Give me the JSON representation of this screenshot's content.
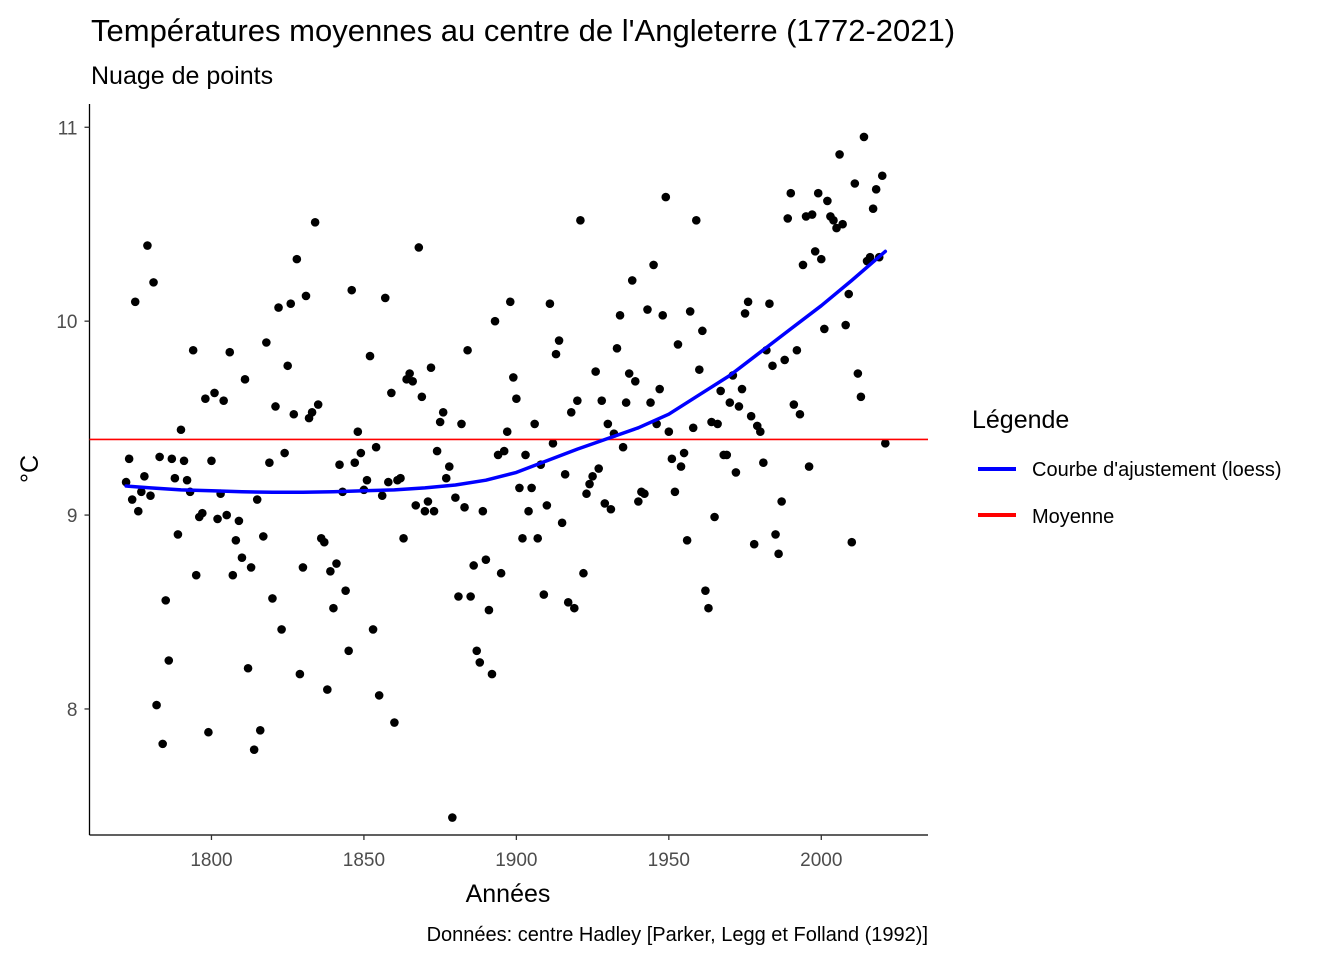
{
  "chart_data": {
    "type": "scatter",
    "title": "Températures moyennes au centre de l'Angleterre (1772-2021)",
    "subtitle": "Nuage de points",
    "xlabel": "Années",
    "ylabel": "°C",
    "caption": "Données: centre Hadley [Parker, Legg et Folland (1992)]",
    "xlim": [
      1760,
      2035
    ],
    "ylim": [
      7.35,
      11.12
    ],
    "x_ticks": [
      1800,
      1850,
      1900,
      1950,
      2000
    ],
    "y_ticks": [
      8,
      9,
      10,
      11
    ],
    "grid": false,
    "legend": {
      "title": "Légende",
      "position": "right",
      "entries": [
        {
          "label": "Courbe d'ajustement (loess)",
          "color": "#0000ff"
        },
        {
          "label": "Moyenne",
          "color": "#ff0000"
        }
      ]
    },
    "colors": {
      "points": "#000000",
      "loess": "#0000ff",
      "mean": "#ff0000"
    },
    "mean_value": 9.39,
    "points": [
      [
        1772,
        9.17
      ],
      [
        1773,
        9.29
      ],
      [
        1774,
        9.08
      ],
      [
        1775,
        10.1
      ],
      [
        1776,
        9.02
      ],
      [
        1777,
        9.12
      ],
      [
        1778,
        9.2
      ],
      [
        1779,
        10.39
      ],
      [
        1780,
        9.1
      ],
      [
        1781,
        10.2
      ],
      [
        1782,
        8.02
      ],
      [
        1783,
        9.3
      ],
      [
        1784,
        7.82
      ],
      [
        1785,
        8.56
      ],
      [
        1786,
        8.25
      ],
      [
        1787,
        9.29
      ],
      [
        1788,
        9.19
      ],
      [
        1789,
        8.9
      ],
      [
        1790,
        9.44
      ],
      [
        1791,
        9.28
      ],
      [
        1792,
        9.18
      ],
      [
        1793,
        9.12
      ],
      [
        1794,
        9.85
      ],
      [
        1795,
        8.69
      ],
      [
        1796,
        8.99
      ],
      [
        1797,
        9.01
      ],
      [
        1798,
        9.6
      ],
      [
        1799,
        7.88
      ],
      [
        1800,
        9.28
      ],
      [
        1801,
        9.63
      ],
      [
        1802,
        8.98
      ],
      [
        1803,
        9.11
      ],
      [
        1804,
        9.59
      ],
      [
        1805,
        9.0
      ],
      [
        1806,
        9.84
      ],
      [
        1807,
        8.69
      ],
      [
        1808,
        8.87
      ],
      [
        1809,
        8.97
      ],
      [
        1810,
        8.78
      ],
      [
        1811,
        9.7
      ],
      [
        1812,
        8.21
      ],
      [
        1813,
        8.73
      ],
      [
        1814,
        7.79
      ],
      [
        1815,
        9.08
      ],
      [
        1816,
        7.89
      ],
      [
        1817,
        8.89
      ],
      [
        1818,
        9.89
      ],
      [
        1819,
        9.27
      ],
      [
        1820,
        8.57
      ],
      [
        1821,
        9.56
      ],
      [
        1822,
        10.07
      ],
      [
        1823,
        8.41
      ],
      [
        1824,
        9.32
      ],
      [
        1825,
        9.77
      ],
      [
        1826,
        10.09
      ],
      [
        1827,
        9.52
      ],
      [
        1828,
        10.32
      ],
      [
        1829,
        8.18
      ],
      [
        1830,
        8.73
      ],
      [
        1831,
        10.13
      ],
      [
        1832,
        9.5
      ],
      [
        1833,
        9.53
      ],
      [
        1834,
        10.51
      ],
      [
        1835,
        9.57
      ],
      [
        1836,
        8.88
      ],
      [
        1837,
        8.86
      ],
      [
        1838,
        8.1
      ],
      [
        1839,
        8.71
      ],
      [
        1840,
        8.52
      ],
      [
        1841,
        8.75
      ],
      [
        1842,
        9.26
      ],
      [
        1843,
        9.12
      ],
      [
        1844,
        8.61
      ],
      [
        1845,
        8.3
      ],
      [
        1846,
        10.16
      ],
      [
        1847,
        9.27
      ],
      [
        1848,
        9.43
      ],
      [
        1849,
        9.32
      ],
      [
        1850,
        9.13
      ],
      [
        1851,
        9.18
      ],
      [
        1852,
        9.82
      ],
      [
        1853,
        8.41
      ],
      [
        1854,
        9.35
      ],
      [
        1855,
        8.07
      ],
      [
        1856,
        9.1
      ],
      [
        1857,
        10.12
      ],
      [
        1858,
        9.17
      ],
      [
        1859,
        9.63
      ],
      [
        1860,
        7.93
      ],
      [
        1861,
        9.18
      ],
      [
        1862,
        9.19
      ],
      [
        1863,
        8.88
      ],
      [
        1864,
        9.7
      ],
      [
        1865,
        9.73
      ],
      [
        1866,
        9.69
      ],
      [
        1867,
        9.05
      ],
      [
        1868,
        10.38
      ],
      [
        1869,
        9.61
      ],
      [
        1870,
        9.02
      ],
      [
        1871,
        9.07
      ],
      [
        1872,
        9.76
      ],
      [
        1873,
        9.02
      ],
      [
        1874,
        9.33
      ],
      [
        1875,
        9.48
      ],
      [
        1876,
        9.53
      ],
      [
        1877,
        9.19
      ],
      [
        1878,
        9.25
      ],
      [
        1879,
        7.44
      ],
      [
        1880,
        9.09
      ],
      [
        1881,
        8.58
      ],
      [
        1882,
        9.47
      ],
      [
        1883,
        9.04
      ],
      [
        1884,
        9.85
      ],
      [
        1885,
        8.58
      ],
      [
        1886,
        8.74
      ],
      [
        1887,
        8.3
      ],
      [
        1888,
        8.24
      ],
      [
        1889,
        9.02
      ],
      [
        1890,
        8.77
      ],
      [
        1891,
        8.51
      ],
      [
        1892,
        8.18
      ],
      [
        1893,
        10.0
      ],
      [
        1894,
        9.31
      ],
      [
        1895,
        8.7
      ],
      [
        1896,
        9.33
      ],
      [
        1897,
        9.43
      ],
      [
        1898,
        10.1
      ],
      [
        1899,
        9.71
      ],
      [
        1900,
        9.6
      ],
      [
        1901,
        9.14
      ],
      [
        1902,
        8.88
      ],
      [
        1903,
        9.31
      ],
      [
        1904,
        9.02
      ],
      [
        1905,
        9.14
      ],
      [
        1906,
        9.47
      ],
      [
        1907,
        8.88
      ],
      [
        1908,
        9.26
      ],
      [
        1909,
        8.59
      ],
      [
        1910,
        9.05
      ],
      [
        1911,
        10.09
      ],
      [
        1912,
        9.37
      ],
      [
        1913,
        9.83
      ],
      [
        1914,
        9.9
      ],
      [
        1915,
        8.96
      ],
      [
        1916,
        9.21
      ],
      [
        1917,
        8.55
      ],
      [
        1918,
        9.53
      ],
      [
        1919,
        8.52
      ],
      [
        1920,
        9.59
      ],
      [
        1921,
        10.52
      ],
      [
        1922,
        8.7
      ],
      [
        1923,
        9.11
      ],
      [
        1924,
        9.16
      ],
      [
        1925,
        9.2
      ],
      [
        1926,
        9.74
      ],
      [
        1927,
        9.24
      ],
      [
        1928,
        9.59
      ],
      [
        1929,
        9.06
      ],
      [
        1930,
        9.47
      ],
      [
        1931,
        9.03
      ],
      [
        1932,
        9.42
      ],
      [
        1933,
        9.86
      ],
      [
        1934,
        10.03
      ],
      [
        1935,
        9.35
      ],
      [
        1936,
        9.58
      ],
      [
        1937,
        9.73
      ],
      [
        1938,
        10.21
      ],
      [
        1939,
        9.69
      ],
      [
        1940,
        9.07
      ],
      [
        1941,
        9.12
      ],
      [
        1942,
        9.11
      ],
      [
        1943,
        10.06
      ],
      [
        1944,
        9.58
      ],
      [
        1945,
        10.29
      ],
      [
        1946,
        9.47
      ],
      [
        1947,
        9.65
      ],
      [
        1948,
        10.03
      ],
      [
        1949,
        10.64
      ],
      [
        1950,
        9.43
      ],
      [
        1951,
        9.29
      ],
      [
        1952,
        9.12
      ],
      [
        1953,
        9.88
      ],
      [
        1954,
        9.25
      ],
      [
        1955,
        9.32
      ],
      [
        1956,
        8.87
      ],
      [
        1957,
        10.05
      ],
      [
        1958,
        9.45
      ],
      [
        1959,
        10.52
      ],
      [
        1960,
        9.75
      ],
      [
        1961,
        9.95
      ],
      [
        1962,
        8.61
      ],
      [
        1963,
        8.52
      ],
      [
        1964,
        9.48
      ],
      [
        1965,
        8.99
      ],
      [
        1966,
        9.47
      ],
      [
        1967,
        9.64
      ],
      [
        1968,
        9.31
      ],
      [
        1969,
        9.31
      ],
      [
        1970,
        9.58
      ],
      [
        1971,
        9.72
      ],
      [
        1972,
        9.22
      ],
      [
        1973,
        9.56
      ],
      [
        1974,
        9.65
      ],
      [
        1975,
        10.04
      ],
      [
        1976,
        10.1
      ],
      [
        1977,
        9.51
      ],
      [
        1978,
        8.85
      ],
      [
        1979,
        9.46
      ],
      [
        1980,
        9.43
      ],
      [
        1981,
        9.27
      ],
      [
        1982,
        9.85
      ],
      [
        1983,
        10.09
      ],
      [
        1984,
        9.77
      ],
      [
        1985,
        8.9
      ],
      [
        1986,
        8.8
      ],
      [
        1987,
        9.07
      ],
      [
        1988,
        9.8
      ],
      [
        1989,
        10.53
      ],
      [
        1990,
        10.66
      ],
      [
        1991,
        9.57
      ],
      [
        1992,
        9.85
      ],
      [
        1993,
        9.52
      ],
      [
        1994,
        10.29
      ],
      [
        1995,
        10.54
      ],
      [
        1996,
        9.25
      ],
      [
        1997,
        10.55
      ],
      [
        1998,
        10.36
      ],
      [
        1999,
        10.66
      ],
      [
        2000,
        10.32
      ],
      [
        2001,
        9.96
      ],
      [
        2002,
        10.62
      ],
      [
        2003,
        10.54
      ],
      [
        2004,
        10.52
      ],
      [
        2005,
        10.48
      ],
      [
        2006,
        10.86
      ],
      [
        2007,
        10.5
      ],
      [
        2008,
        9.98
      ],
      [
        2009,
        10.14
      ],
      [
        2010,
        8.86
      ],
      [
        2011,
        10.71
      ],
      [
        2012,
        9.73
      ],
      [
        2013,
        9.61
      ],
      [
        2014,
        10.95
      ],
      [
        2015,
        10.31
      ],
      [
        2016,
        10.33
      ],
      [
        2017,
        10.58
      ],
      [
        2018,
        10.68
      ],
      [
        2019,
        10.33
      ],
      [
        2020,
        10.75
      ],
      [
        2021,
        9.37
      ]
    ],
    "loess": [
      [
        1772,
        9.15
      ],
      [
        1780,
        9.14
      ],
      [
        1790,
        9.13
      ],
      [
        1800,
        9.125
      ],
      [
        1810,
        9.12
      ],
      [
        1820,
        9.118
      ],
      [
        1830,
        9.118
      ],
      [
        1840,
        9.12
      ],
      [
        1850,
        9.125
      ],
      [
        1860,
        9.13
      ],
      [
        1870,
        9.14
      ],
      [
        1880,
        9.155
      ],
      [
        1890,
        9.18
      ],
      [
        1900,
        9.22
      ],
      [
        1910,
        9.28
      ],
      [
        1920,
        9.34
      ],
      [
        1930,
        9.395
      ],
      [
        1940,
        9.45
      ],
      [
        1950,
        9.52
      ],
      [
        1960,
        9.62
      ],
      [
        1970,
        9.72
      ],
      [
        1980,
        9.84
      ],
      [
        1990,
        9.96
      ],
      [
        2000,
        10.08
      ],
      [
        2010,
        10.21
      ],
      [
        2021,
        10.36
      ]
    ]
  }
}
